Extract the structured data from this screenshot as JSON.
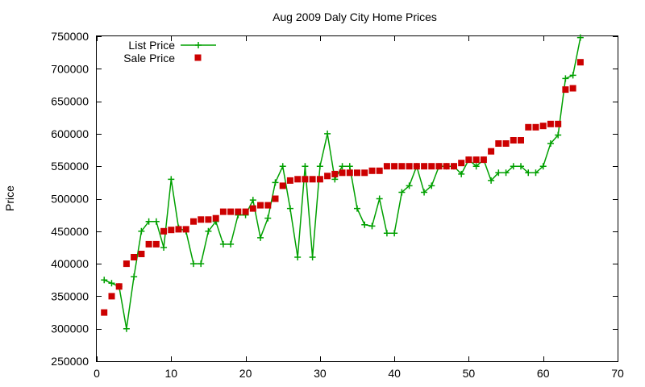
{
  "chart_data": {
    "type": "line",
    "title": "Aug 2009 Daly City Home Prices",
    "xlabel": "",
    "ylabel": "Price",
    "xlim": [
      0,
      70
    ],
    "ylim": [
      250000,
      750000
    ],
    "x_ticks": [
      0,
      10,
      20,
      30,
      40,
      50,
      60,
      70
    ],
    "y_ticks": [
      250000,
      300000,
      350000,
      400000,
      450000,
      500000,
      550000,
      600000,
      650000,
      700000,
      750000
    ],
    "grid": false,
    "legend_position": "top-left",
    "series": [
      {
        "name": "List Price",
        "style": "line-with-plus-markers",
        "color": "#00a000",
        "x": [
          1,
          2,
          3,
          4,
          5,
          6,
          7,
          8,
          9,
          10,
          11,
          12,
          13,
          14,
          15,
          16,
          17,
          18,
          19,
          20,
          21,
          22,
          23,
          24,
          25,
          26,
          27,
          28,
          29,
          30,
          31,
          32,
          33,
          34,
          35,
          36,
          37,
          38,
          39,
          40,
          41,
          42,
          43,
          44,
          45,
          46,
          47,
          48,
          49,
          50,
          51,
          52,
          53,
          54,
          55,
          56,
          57,
          58,
          59,
          60,
          61,
          62,
          63,
          64,
          65
        ],
        "y": [
          375000,
          370000,
          365000,
          300000,
          380000,
          450000,
          465000,
          465000,
          425000,
          530000,
          455000,
          450000,
          400000,
          400000,
          450000,
          465000,
          430000,
          430000,
          475000,
          475000,
          498000,
          440000,
          470000,
          525000,
          550000,
          485000,
          410000,
          550000,
          410000,
          550000,
          600000,
          530000,
          550000,
          550000,
          485000,
          460000,
          458000,
          500000,
          447000,
          447000,
          510000,
          520000,
          550000,
          510000,
          520000,
          550000,
          550000,
          550000,
          538000,
          560000,
          550000,
          560000,
          528000,
          540000,
          540000,
          550000,
          550000,
          540000,
          540000,
          550000,
          585000,
          598000,
          685000,
          690000,
          748000
        ]
      },
      {
        "name": "Sale Price",
        "style": "square-markers",
        "color": "#cc0000",
        "x": [
          1,
          2,
          3,
          4,
          5,
          6,
          7,
          8,
          9,
          10,
          11,
          12,
          13,
          14,
          15,
          16,
          17,
          18,
          19,
          20,
          21,
          22,
          23,
          24,
          25,
          26,
          27,
          28,
          29,
          30,
          31,
          32,
          33,
          34,
          35,
          36,
          37,
          38,
          39,
          40,
          41,
          42,
          43,
          44,
          45,
          46,
          47,
          48,
          49,
          50,
          51,
          52,
          53,
          54,
          55,
          56,
          57,
          58,
          59,
          60,
          61,
          62,
          63,
          64,
          65
        ],
        "y": [
          325000,
          350000,
          365000,
          400000,
          410000,
          415000,
          430000,
          430000,
          450000,
          452000,
          453000,
          453000,
          465000,
          468000,
          468000,
          470000,
          480000,
          480000,
          480000,
          480000,
          485000,
          490000,
          490000,
          500000,
          520000,
          528000,
          530000,
          530000,
          530000,
          530000,
          535000,
          538000,
          540000,
          540000,
          540000,
          540000,
          543000,
          543000,
          550000,
          550000,
          550000,
          550000,
          550000,
          550000,
          550000,
          550000,
          550000,
          550000,
          555000,
          560000,
          560000,
          560000,
          573000,
          585000,
          585000,
          590000,
          590000,
          610000,
          610000,
          612000,
          615000,
          615000,
          668000,
          670000,
          710000
        ]
      }
    ]
  }
}
